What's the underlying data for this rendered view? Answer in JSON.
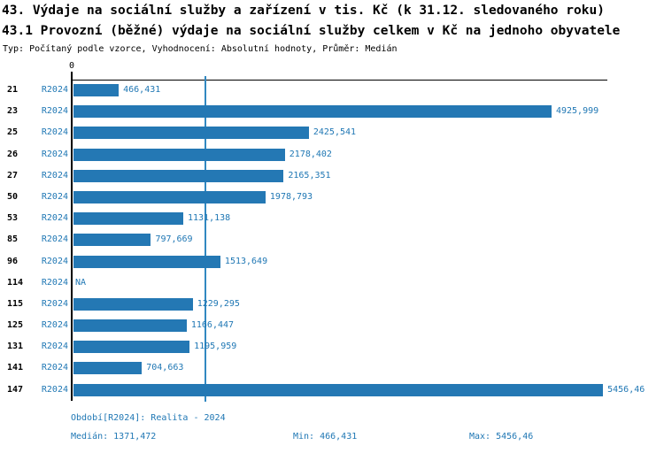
{
  "header": {
    "title": "43. Výdaje na sociální služby a zařízení v tis. Kč (k 31.12. sledovaného roku)",
    "subtitle": "43.1 Provozní (běžné) výdaje na sociální služby celkem v Kč na jednoho obyvatele",
    "meta": "Typ: Počítaný podle vzorce, Vyhodnocení: Absolutní hodnoty, Průměr: Medián"
  },
  "chart_data": {
    "type": "bar",
    "orientation": "horizontal",
    "title": "Provozní (běžné) výdaje na sociální služby celkem v Kč na jednoho obyvatele",
    "categories": [
      "21",
      "23",
      "25",
      "26",
      "27",
      "50",
      "53",
      "85",
      "96",
      "114",
      "115",
      "125",
      "131",
      "141",
      "147"
    ],
    "series": [
      {
        "name": "R2024",
        "values": [
          466.431,
          4925.999,
          2425.541,
          2178.402,
          2165.351,
          1978.793,
          1131.138,
          797.669,
          1513.649,
          null,
          1229.295,
          1166.447,
          1195.959,
          704.663,
          5456.46
        ],
        "value_labels": [
          "466,431",
          "4925,999",
          "2425,541",
          "2178,402",
          "2165,351",
          "1978,793",
          "1131,138",
          "797,669",
          "1513,649",
          "NA",
          "1229,295",
          "1166,447",
          "1195,959",
          "704,663",
          "5456,46"
        ]
      }
    ],
    "x_axis_zero_label": "0",
    "xlim": [
      0,
      5510
    ],
    "median_value": 1371.472,
    "grid": false,
    "legend_position": "none"
  },
  "footer": {
    "period_label": "Období[R2024]: Realita - 2024",
    "median_label": "Medián: 1371,472",
    "min_label": "Min: 466,431",
    "max_label": "Max: 5456,46"
  },
  "colors": {
    "bar": "#2478b4",
    "text_blue": "#1f77b4",
    "median_line": "#3188c1",
    "axis": "#000000"
  }
}
